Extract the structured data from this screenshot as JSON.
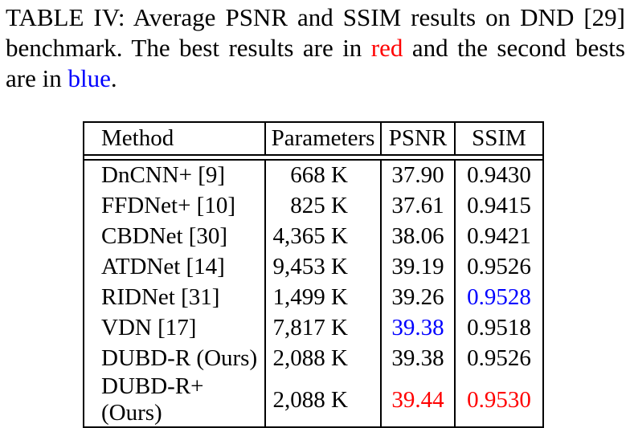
{
  "colors": {
    "best": "#ff0000",
    "second": "#0000ff",
    "text": "#000000",
    "border": "#000000",
    "background": "#ffffff"
  },
  "caption": {
    "lines": [
      {
        "justify": true,
        "segments": [
          {
            "text": "TABLE IV: Average PSNR and SSIM results on DND [29]"
          }
        ]
      },
      {
        "justify": true,
        "segments": [
          {
            "text": "benchmark. The best results are in "
          },
          {
            "text": "red",
            "color": "best"
          },
          {
            "text": " and the second bests"
          }
        ]
      },
      {
        "justify": false,
        "segments": [
          {
            "text": "are in "
          },
          {
            "text": "blue",
            "color": "second"
          },
          {
            "text": "."
          }
        ]
      }
    ]
  },
  "table": {
    "headers": [
      "Method",
      "Parameters",
      "PSNR",
      "SSIM"
    ],
    "rows": [
      {
        "method": "DnCNN+ [9]",
        "parameters": "668 K",
        "psnr": "37.90",
        "ssim": "0.9430",
        "psnr_highlight": null,
        "ssim_highlight": null
      },
      {
        "method": "FFDNet+ [10]",
        "parameters": "825 K",
        "psnr": "37.61",
        "ssim": "0.9415",
        "psnr_highlight": null,
        "ssim_highlight": null
      },
      {
        "method": "CBDNet [30]",
        "parameters": "4,365 K",
        "psnr": "38.06",
        "ssim": "0.9421",
        "psnr_highlight": null,
        "ssim_highlight": null
      },
      {
        "method": "ATDNet [14]",
        "parameters": "9,453 K",
        "psnr": "39.19",
        "ssim": "0.9526",
        "psnr_highlight": null,
        "ssim_highlight": null
      },
      {
        "method": "RIDNet [31]",
        "parameters": "1,499 K",
        "psnr": "39.26",
        "ssim": "0.9528",
        "psnr_highlight": null,
        "ssim_highlight": "second"
      },
      {
        "method": "VDN [17]",
        "parameters": "7,817 K",
        "psnr": "39.38",
        "ssim": "0.9518",
        "psnr_highlight": "second",
        "ssim_highlight": null
      },
      {
        "method": "DUBD-R (Ours)",
        "parameters": "2,088 K",
        "psnr": "39.38",
        "ssim": "0.9526",
        "psnr_highlight": null,
        "ssim_highlight": null
      },
      {
        "method": "DUBD-R+ (Ours)",
        "parameters": "2,088 K",
        "psnr": "39.44",
        "ssim": "0.9530",
        "psnr_highlight": "best",
        "ssim_highlight": "best"
      }
    ]
  }
}
